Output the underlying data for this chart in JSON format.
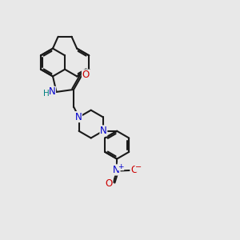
{
  "background_color": "#e8e8e8",
  "bond_color": "#1a1a1a",
  "bond_width": 1.5,
  "atom_colors": {
    "N": "#0000cc",
    "O": "#cc0000",
    "H": "#008080",
    "C": "#1a1a1a"
  },
  "font_size_atom": 8.5,
  "xlim": [
    0,
    10
  ],
  "ylim": [
    0,
    10
  ]
}
